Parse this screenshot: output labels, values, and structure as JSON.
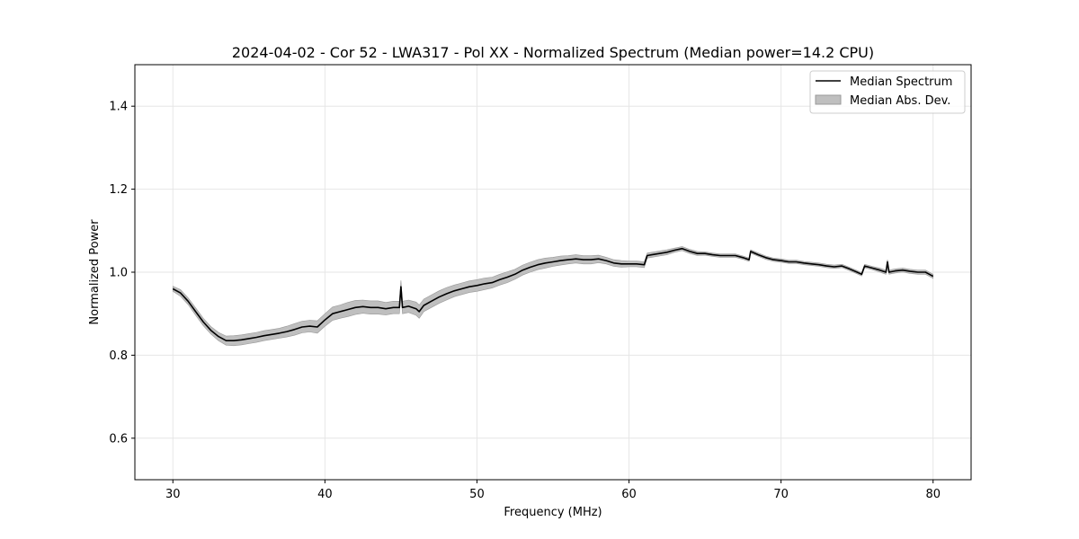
{
  "chart_data": {
    "type": "line",
    "title": "2024-04-02 - Cor 52 - LWA317 - Pol XX - Normalized Spectrum (Median power=14.2 CPU)",
    "xlabel": "Frequency (MHz)",
    "ylabel": "Normalized Power",
    "xlim": [
      27.5,
      82.5
    ],
    "ylim": [
      0.5,
      1.5
    ],
    "xticks": [
      30,
      40,
      50,
      60,
      70,
      80
    ],
    "yticks": [
      0.6,
      0.8,
      1.0,
      1.2,
      1.4
    ],
    "xtick_labels": [
      "30",
      "40",
      "50",
      "60",
      "70",
      "80"
    ],
    "ytick_labels": [
      "0.6",
      "0.8",
      "1.0",
      "1.2",
      "1.4"
    ],
    "grid": true,
    "legend_position": "top-right",
    "legend": [
      "Median Spectrum",
      "Median Abs. Dev."
    ],
    "colors": {
      "line": "#000000",
      "band": "#bfbfbf",
      "band_edge": "#999999",
      "grid": "#e6e6e6"
    },
    "series": [
      {
        "name": "Median Spectrum",
        "x": [
          30.0,
          30.5,
          31.0,
          31.5,
          32.0,
          32.5,
          33.0,
          33.5,
          34.0,
          34.5,
          35.0,
          35.5,
          36.0,
          36.5,
          37.0,
          37.5,
          38.0,
          38.5,
          39.0,
          39.5,
          40.0,
          40.5,
          41.0,
          41.5,
          42.0,
          42.5,
          43.0,
          43.5,
          44.0,
          44.5,
          44.9,
          45.0,
          45.1,
          45.5,
          46.0,
          46.2,
          46.5,
          47.0,
          47.5,
          48.0,
          48.5,
          49.0,
          49.5,
          50.0,
          50.5,
          51.0,
          51.5,
          52.0,
          52.5,
          53.0,
          53.5,
          54.0,
          54.5,
          55.0,
          55.5,
          56.0,
          56.5,
          57.0,
          57.5,
          58.0,
          58.5,
          59.0,
          59.5,
          60.0,
          60.5,
          61.0,
          61.2,
          61.5,
          62.0,
          62.5,
          63.0,
          63.5,
          64.0,
          64.5,
          65.0,
          65.5,
          66.0,
          66.5,
          67.0,
          67.5,
          67.9,
          68.0,
          68.5,
          69.0,
          69.5,
          70.0,
          70.5,
          71.0,
          71.5,
          72.0,
          72.5,
          73.0,
          73.5,
          74.0,
          74.5,
          75.0,
          75.3,
          75.5,
          76.0,
          76.5,
          76.9,
          77.0,
          77.1,
          77.5,
          78.0,
          78.5,
          79.0,
          79.5,
          80.0
        ],
        "values": [
          0.96,
          0.95,
          0.93,
          0.905,
          0.88,
          0.86,
          0.845,
          0.835,
          0.835,
          0.837,
          0.84,
          0.843,
          0.847,
          0.85,
          0.853,
          0.857,
          0.862,
          0.868,
          0.87,
          0.868,
          0.885,
          0.9,
          0.905,
          0.91,
          0.915,
          0.917,
          0.915,
          0.915,
          0.912,
          0.915,
          0.915,
          0.965,
          0.915,
          0.918,
          0.912,
          0.905,
          0.92,
          0.93,
          0.94,
          0.948,
          0.955,
          0.96,
          0.965,
          0.968,
          0.972,
          0.975,
          0.982,
          0.988,
          0.995,
          1.005,
          1.012,
          1.018,
          1.022,
          1.025,
          1.028,
          1.03,
          1.032,
          1.03,
          1.03,
          1.032,
          1.028,
          1.022,
          1.02,
          1.02,
          1.02,
          1.018,
          1.04,
          1.042,
          1.045,
          1.048,
          1.053,
          1.057,
          1.05,
          1.045,
          1.045,
          1.042,
          1.04,
          1.04,
          1.04,
          1.035,
          1.03,
          1.05,
          1.042,
          1.035,
          1.03,
          1.028,
          1.025,
          1.025,
          1.022,
          1.02,
          1.018,
          1.015,
          1.013,
          1.015,
          1.008,
          1.0,
          0.995,
          1.015,
          1.01,
          1.005,
          1.0,
          1.025,
          1.0,
          1.003,
          1.005,
          1.002,
          1.0,
          1.0,
          0.99
        ]
      },
      {
        "name": "Median Abs. Dev.",
        "halfwidth": [
          0.006,
          0.008,
          0.008,
          0.009,
          0.009,
          0.009,
          0.01,
          0.011,
          0.012,
          0.012,
          0.012,
          0.012,
          0.012,
          0.012,
          0.012,
          0.013,
          0.014,
          0.014,
          0.014,
          0.015,
          0.015,
          0.016,
          0.016,
          0.017,
          0.017,
          0.016,
          0.016,
          0.016,
          0.015,
          0.015,
          0.015,
          0.015,
          0.015,
          0.015,
          0.016,
          0.016,
          0.015,
          0.015,
          0.015,
          0.015,
          0.014,
          0.014,
          0.014,
          0.014,
          0.014,
          0.013,
          0.013,
          0.013,
          0.012,
          0.012,
          0.012,
          0.012,
          0.012,
          0.011,
          0.011,
          0.01,
          0.01,
          0.01,
          0.01,
          0.009,
          0.008,
          0.008,
          0.008,
          0.007,
          0.007,
          0.007,
          0.006,
          0.006,
          0.006,
          0.006,
          0.005,
          0.005,
          0.005,
          0.005,
          0.004,
          0.004,
          0.004,
          0.004,
          0.004,
          0.004,
          0.004,
          0.004,
          0.004,
          0.004,
          0.004,
          0.004,
          0.004,
          0.004,
          0.004,
          0.004,
          0.004,
          0.004,
          0.004,
          0.004,
          0.004,
          0.004,
          0.004,
          0.004,
          0.004,
          0.005,
          0.005,
          0.005,
          0.005,
          0.005,
          0.005,
          0.005,
          0.005,
          0.005,
          0.005
        ]
      }
    ]
  }
}
